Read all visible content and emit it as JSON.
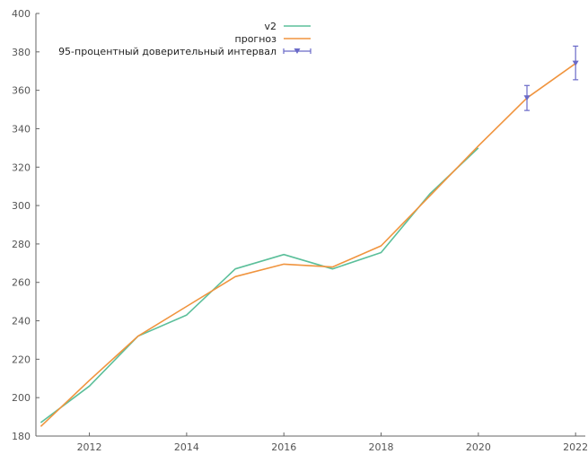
{
  "chart_data": {
    "type": "line",
    "grid": false,
    "legend_position": "top",
    "xlim": [
      2010.9,
      2022.2
    ],
    "ylim": [
      180,
      400
    ],
    "x_ticks": [
      2012,
      2014,
      2016,
      2018,
      2020,
      2022
    ],
    "y_ticks": [
      180,
      200,
      220,
      240,
      260,
      280,
      300,
      320,
      340,
      360,
      380,
      400
    ],
    "series": [
      {
        "name": "v2",
        "color": "#5bbf9a",
        "x": [
          2011,
          2012,
          2013,
          2014,
          2015,
          2016,
          2017,
          2018,
          2019,
          2020
        ],
        "y": [
          187,
          206,
          232,
          243,
          267,
          274.5,
          267,
          275.5,
          306,
          330
        ]
      },
      {
        "name": "прогноз",
        "color": "#f0943e",
        "x": [
          2011,
          2012,
          2013,
          2014,
          2015,
          2016,
          2017,
          2018,
          2019,
          2020,
          2021,
          2022
        ],
        "y": [
          185,
          209,
          232,
          247.5,
          263,
          269.5,
          268,
          279,
          305,
          331,
          356,
          374
        ]
      },
      {
        "name": "95-процентный доверительный интервал",
        "color": "#6a6ac8",
        "type": "errorbar",
        "x": [
          2021,
          2022
        ],
        "y": [
          356,
          374
        ],
        "low": [
          349.5,
          365.5
        ],
        "high": [
          362.5,
          383
        ]
      }
    ]
  }
}
